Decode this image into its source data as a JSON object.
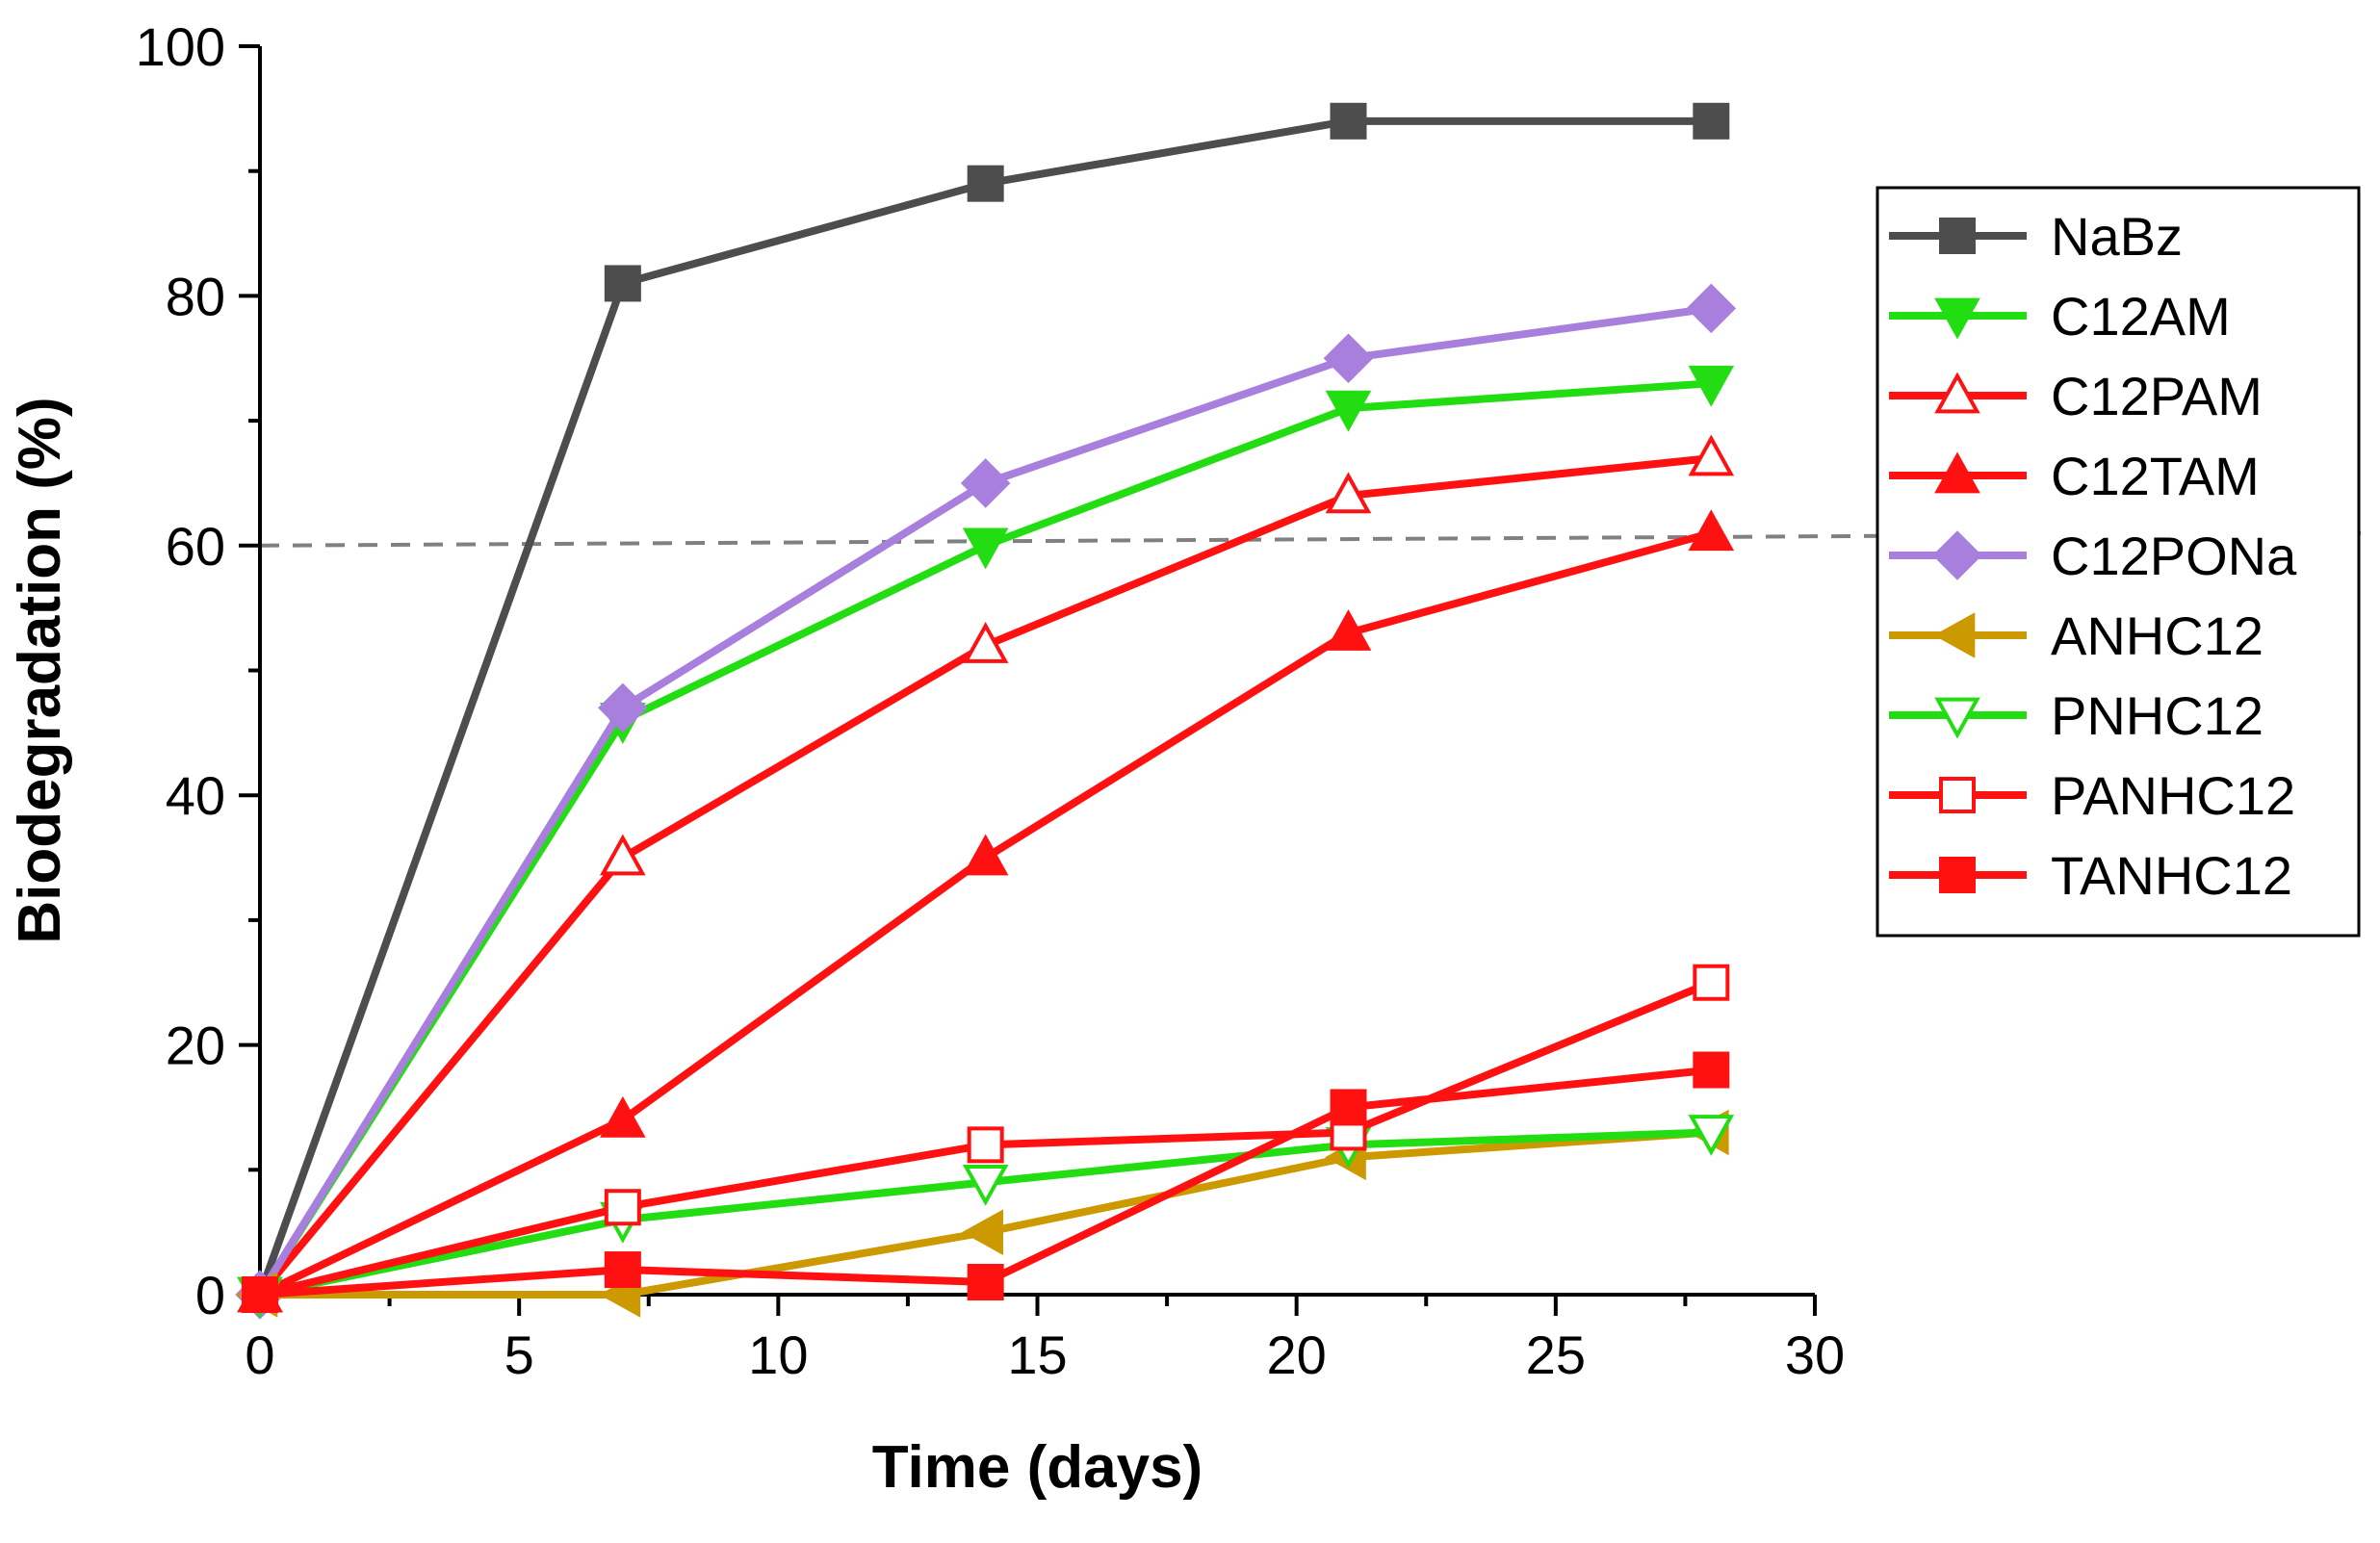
{
  "chart_data": {
    "type": "line",
    "title": "",
    "xlabel": "Time (days)",
    "ylabel": "Biodegradation (%)",
    "xlim": [
      0,
      30
    ],
    "ylim": [
      0,
      100
    ],
    "xticks": [
      0,
      5,
      10,
      15,
      20,
      25,
      30
    ],
    "yticks": [
      0,
      20,
      40,
      60,
      80,
      100
    ],
    "grid": false,
    "legend_position": "right",
    "threshold_line": {
      "y": 60,
      "y_end": 61,
      "style": "dashed",
      "color": "#808080"
    },
    "series": [
      {
        "name": "NaBz",
        "color": "#4d4d4d",
        "marker": "square",
        "filled": true,
        "x": [
          0,
          7,
          14,
          21,
          28
        ],
        "y": [
          0,
          81,
          89,
          94,
          94
        ]
      },
      {
        "name": "C12AM",
        "color": "#22dd11",
        "marker": "triangle-down",
        "filled": true,
        "x": [
          0,
          7,
          14,
          21,
          28
        ],
        "y": [
          0,
          46,
          60,
          71,
          73
        ]
      },
      {
        "name": "C12PAM",
        "color": "#ff1111",
        "marker": "triangle-up",
        "filled": false,
        "x": [
          0,
          7,
          14,
          21,
          28
        ],
        "y": [
          0,
          35,
          52,
          64,
          67
        ]
      },
      {
        "name": "C12TAM",
        "color": "#ff1111",
        "marker": "triangle-up",
        "filled": true,
        "x": [
          0,
          7,
          14,
          21,
          28
        ],
        "y": [
          0,
          14,
          35,
          53,
          61
        ]
      },
      {
        "name": "C12PONa",
        "color": "#a87fdc",
        "marker": "diamond",
        "filled": true,
        "x": [
          0,
          7,
          14,
          21,
          28
        ],
        "y": [
          0,
          47,
          65,
          75,
          79
        ]
      },
      {
        "name": "ANHC12",
        "color": "#cc9900",
        "marker": "triangle-left",
        "filled": true,
        "x": [
          0,
          7,
          14,
          21,
          28
        ],
        "y": [
          0,
          0,
          5,
          11,
          13
        ]
      },
      {
        "name": "PNHC12",
        "color": "#22dd11",
        "marker": "triangle-down",
        "filled": false,
        "x": [
          0,
          7,
          14,
          21,
          28
        ],
        "y": [
          0,
          6,
          9,
          12,
          13
        ]
      },
      {
        "name": "PANHC12",
        "color": "#ff1111",
        "marker": "square",
        "filled": false,
        "x": [
          0,
          7,
          14,
          21,
          28
        ],
        "y": [
          0,
          7,
          12,
          13,
          25
        ]
      },
      {
        "name": "TANHC12",
        "color": "#ff1111",
        "marker": "square",
        "filled": true,
        "x": [
          0,
          7,
          14,
          21,
          28
        ],
        "y": [
          0,
          2,
          1,
          15,
          18
        ]
      }
    ]
  }
}
